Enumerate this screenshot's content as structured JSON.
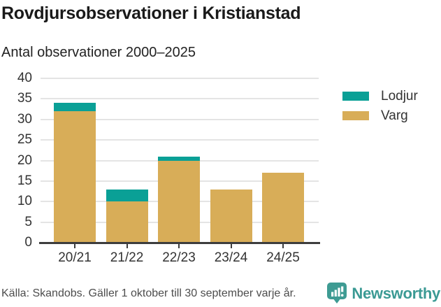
{
  "header": {
    "title": "Rovdjursobservationer i Kristianstad",
    "subtitle": "Antal observationer 2000–2025"
  },
  "chart_data": {
    "type": "bar",
    "stacked": true,
    "title": "Rovdjursobservationer i Kristianstad",
    "subtitle": "Antal observationer 2000–2025",
    "categories": [
      "20/21",
      "21/22",
      "22/23",
      "23/24",
      "24/25"
    ],
    "series": [
      {
        "name": "Varg",
        "color": "#d8ad58",
        "values": [
          32,
          10,
          20,
          13,
          17
        ]
      },
      {
        "name": "Lodjur",
        "color": "#0aa096",
        "values": [
          2,
          3,
          1,
          0,
          0
        ]
      }
    ],
    "stack_totals": [
      34,
      13,
      21,
      13,
      17
    ],
    "xlabel": "",
    "ylabel": "",
    "ylim": [
      0,
      40
    ],
    "yticks": [
      0,
      5,
      10,
      15,
      20,
      25,
      30,
      35,
      40
    ],
    "grid": true,
    "legend": [
      "Lodjur",
      "Varg"
    ],
    "legend_position": "right"
  },
  "footer": {
    "source": "Källa: Skandobs. Gäller 1 oktober till 30 september varje år.",
    "brand": "Newsworthy"
  },
  "colors": {
    "lodjur_teal": "#0aa096",
    "varg_gold": "#d8ad58",
    "axis": "#3d3d3d",
    "gridline": "#e4e4e4",
    "title_text": "#1a1a1a",
    "muted_text": "#4d4d4d",
    "brand_teal": "#3b9a94"
  }
}
